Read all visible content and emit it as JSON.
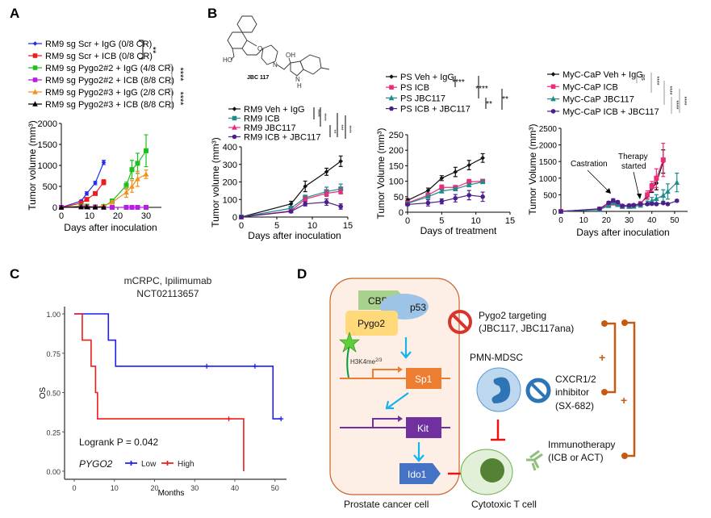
{
  "panel_labels": {
    "a": "A",
    "b": "B",
    "c": "C",
    "d": "D"
  },
  "structure": {
    "name": "JBC 117",
    "atom_labels": [
      "O",
      "HO",
      "N",
      "OH",
      "N",
      "H"
    ]
  },
  "chart_data": [
    {
      "id": "A",
      "type": "line",
      "xlabel": "Days after inoculation",
      "ylabel": "Tumor volume (mm³)",
      "xlim": [
        0,
        35
      ],
      "ylim": [
        0,
        2000
      ],
      "xticks": [
        0,
        10,
        20,
        30
      ],
      "yticks": [
        0,
        500,
        1000,
        1500,
        2000
      ],
      "legend_position": "top",
      "significance": [
        "**",
        "****",
        "****"
      ],
      "series": [
        {
          "name": "RM9 sg Scr + IgG (0/8 CR)",
          "color": "#1f2df0",
          "marker": "diamond",
          "x": [
            0,
            7,
            9,
            12,
            15
          ],
          "y": [
            0,
            150,
            330,
            580,
            1070
          ],
          "err": [
            0,
            20,
            40,
            40,
            50
          ]
        },
        {
          "name": "RM9 sg Scr + ICB (0/8 CR)",
          "color": "#ee1c1c",
          "marker": "square",
          "x": [
            0,
            7,
            9,
            12,
            15
          ],
          "y": [
            0,
            100,
            190,
            330,
            600
          ],
          "err": [
            0,
            15,
            20,
            20,
            60
          ]
        },
        {
          "name": "RM9 sg Pygo2#2 + IgG (4/8 CR)",
          "color": "#1fbf1f",
          "marker": "square",
          "x": [
            0,
            7,
            9,
            12,
            15,
            18,
            23,
            25,
            27,
            30
          ],
          "y": [
            0,
            30,
            30,
            10,
            20,
            150,
            520,
            900,
            1050,
            1350
          ],
          "err": [
            0,
            10,
            10,
            5,
            10,
            50,
            80,
            220,
            240,
            380
          ]
        },
        {
          "name": "RM9 sg Pygo2#2 + ICB (8/8 CR)",
          "color": "#b41fe0",
          "marker": "square",
          "x": [
            0,
            7,
            9,
            12,
            15,
            18,
            23,
            25,
            27,
            30
          ],
          "y": [
            0,
            10,
            10,
            5,
            0,
            0,
            0,
            0,
            0,
            0
          ],
          "err": [
            0,
            5,
            5,
            3,
            0,
            0,
            0,
            0,
            0,
            0
          ]
        },
        {
          "name": "RM9 sg Pygo2#3 + IgG (2/8 CR)",
          "color": "#f7901e",
          "marker": "triangle",
          "x": [
            0,
            7,
            9,
            12,
            15,
            18,
            23,
            25,
            27,
            30
          ],
          "y": [
            0,
            20,
            20,
            10,
            30,
            120,
            360,
            500,
            680,
            790
          ],
          "err": [
            0,
            10,
            10,
            5,
            20,
            40,
            120,
            140,
            180,
            100
          ]
        },
        {
          "name": "RM9 sg Pygo2#3 + ICB (8/8 CR)",
          "color": "#000000",
          "marker": "triangle",
          "x": [
            0,
            7,
            9,
            12,
            15
          ],
          "y": [
            0,
            10,
            10,
            5,
            5
          ],
          "err": [
            0,
            5,
            5,
            3,
            3
          ]
        }
      ]
    },
    {
      "id": "B1",
      "type": "line",
      "xlabel": "Days after inoculation",
      "ylabel": "Tumor volume (mm³)",
      "xlim": [
        0,
        15
      ],
      "ylim": [
        0,
        400
      ],
      "xticks": [
        0,
        5,
        10,
        15
      ],
      "yticks": [
        0,
        100,
        200,
        300,
        400
      ],
      "legend_position": "top",
      "significance": [
        "****",
        "****",
        "**",
        "***",
        "****"
      ],
      "series": [
        {
          "name": "RM9 Veh + IgG",
          "color": "#111111",
          "marker": "diamond",
          "x": [
            0,
            7,
            9,
            12,
            14
          ],
          "y": [
            0,
            75,
            175,
            258,
            318
          ],
          "err": [
            0,
            15,
            30,
            20,
            30
          ]
        },
        {
          "name": "RM9 ICB",
          "color": "#1f8c8c",
          "marker": "square",
          "x": [
            0,
            7,
            9,
            12,
            14
          ],
          "y": [
            0,
            50,
            110,
            145,
            160
          ],
          "err": [
            0,
            8,
            15,
            25,
            28
          ]
        },
        {
          "name": "RM9 JBC117",
          "color": "#ee2a7b",
          "marker": "triangle",
          "x": [
            0,
            7,
            9,
            12,
            14
          ],
          "y": [
            0,
            35,
            102,
            135,
            147
          ],
          "err": [
            0,
            6,
            12,
            18,
            15
          ]
        },
        {
          "name": "RM9 ICB + JBC117",
          "color": "#4b1f8c",
          "marker": "circle",
          "x": [
            0,
            7,
            9,
            12,
            14
          ],
          "y": [
            0,
            32,
            75,
            85,
            60
          ],
          "err": [
            0,
            5,
            12,
            18,
            15
          ]
        }
      ]
    },
    {
      "id": "B2",
      "type": "line",
      "xlabel": "Days of treatment",
      "ylabel": "Tumor Volume (mm³)",
      "xlim": [
        0,
        15
      ],
      "ylim": [
        0,
        250
      ],
      "xticks": [
        0,
        5,
        10,
        15
      ],
      "yticks": [
        0,
        50,
        100,
        150,
        200,
        250
      ],
      "legend_position": "top",
      "significance": [
        "****",
        "****",
        "**",
        "**"
      ],
      "series": [
        {
          "name": "PS Veh + IgG",
          "color": "#111111",
          "marker": "diamond",
          "x": [
            0,
            3,
            5,
            7,
            9,
            11
          ],
          "y": [
            38,
            70,
            110,
            130,
            152,
            175
          ],
          "err": [
            6,
            8,
            8,
            15,
            15,
            14
          ]
        },
        {
          "name": "PS ICB",
          "color": "#ee2a7b",
          "marker": "square",
          "x": [
            0,
            3,
            5,
            7,
            9,
            11
          ],
          "y": [
            30,
            55,
            80,
            80,
            98,
            100
          ],
          "err": [
            5,
            6,
            8,
            6,
            8,
            6
          ]
        },
        {
          "name": "PS JBC117",
          "color": "#1f8c8c",
          "marker": "triangle",
          "x": [
            0,
            3,
            5,
            7,
            9,
            11
          ],
          "y": [
            28,
            50,
            68,
            75,
            88,
            98
          ],
          "err": [
            4,
            5,
            5,
            5,
            6,
            5
          ]
        },
        {
          "name": "PS ICB + JBC117",
          "color": "#4b1f8c",
          "marker": "circle",
          "x": [
            0,
            3,
            5,
            7,
            9,
            11
          ],
          "y": [
            25,
            30,
            35,
            45,
            55,
            50
          ],
          "err": [
            4,
            10,
            8,
            12,
            15,
            15
          ]
        }
      ]
    },
    {
      "id": "B3",
      "type": "line",
      "xlabel": "Days after inoculation",
      "ylabel": "Tumor Volume (mm³)",
      "xlim": [
        0,
        55
      ],
      "ylim": [
        0,
        2500
      ],
      "xticks": [
        0,
        10,
        20,
        30,
        40,
        50
      ],
      "yticks": [
        0,
        500,
        1000,
        1500,
        2000,
        2500
      ],
      "legend_position": "top",
      "significance": [
        "ns",
        "****",
        "****",
        "****",
        "****"
      ],
      "annotations": {
        "castration": "Castration",
        "therapy_1": "Therapy",
        "therapy_2": "started"
      },
      "series": [
        {
          "name": "MyC-CaP Veh + IgG",
          "color": "#111111",
          "marker": "diamond",
          "x": [
            0,
            17,
            21,
            23,
            25,
            27,
            30,
            32,
            35,
            38,
            40,
            42,
            45
          ],
          "y": [
            0,
            70,
            200,
            250,
            230,
            170,
            170,
            180,
            240,
            450,
            700,
            850,
            1500
          ],
          "err": [
            0,
            20,
            30,
            40,
            40,
            30,
            30,
            30,
            50,
            80,
            130,
            200,
            350
          ]
        },
        {
          "name": "MyC-CaP ICB",
          "color": "#ee2a7b",
          "marker": "square",
          "x": [
            0,
            17,
            21,
            23,
            25,
            27,
            30,
            32,
            35,
            38,
            40,
            42,
            45
          ],
          "y": [
            0,
            70,
            200,
            250,
            220,
            150,
            150,
            160,
            220,
            500,
            750,
            1000,
            1550
          ],
          "err": [
            0,
            20,
            30,
            40,
            40,
            30,
            30,
            30,
            50,
            120,
            150,
            280,
            500
          ]
        },
        {
          "name": "MyC-CaP JBC117",
          "color": "#1f8c8c",
          "marker": "triangle",
          "x": [
            0,
            17,
            21,
            23,
            25,
            27,
            30,
            32,
            35,
            38,
            40,
            42,
            45,
            47,
            51
          ],
          "y": [
            0,
            50,
            170,
            260,
            200,
            150,
            150,
            150,
            180,
            250,
            320,
            380,
            480,
            600,
            870
          ],
          "err": [
            0,
            15,
            30,
            40,
            30,
            25,
            25,
            25,
            30,
            60,
            100,
            120,
            170,
            230,
            280
          ]
        },
        {
          "name": "MyC-CaP ICB + JBC117",
          "color": "#4b1f8c",
          "marker": "circle",
          "x": [
            0,
            17,
            21,
            23,
            25,
            27,
            30,
            32,
            35,
            38,
            40,
            42,
            45,
            47,
            51
          ],
          "y": [
            0,
            80,
            260,
            330,
            280,
            170,
            180,
            190,
            220,
            220,
            230,
            220,
            250,
            220,
            320
          ],
          "err": [
            0,
            20,
            40,
            50,
            40,
            30,
            30,
            30,
            30,
            30,
            30,
            30,
            30,
            30,
            30
          ]
        }
      ]
    },
    {
      "id": "C",
      "type": "km",
      "title": "mCRPC, Ipilimumab",
      "subtitle": "NCT02113657",
      "xlabel": "Months",
      "ylabel": "OS",
      "xlim": [
        0,
        52
      ],
      "ylim": [
        0,
        1
      ],
      "xticks": [
        0,
        10,
        20,
        30,
        40,
        50
      ],
      "yticks": [
        "0.00",
        "0.25",
        "0.50",
        "0.75",
        "1.00"
      ],
      "annotation": "Logrank P = 0.042",
      "legend_title": "PYGO2",
      "series": [
        {
          "name": "Low",
          "color": "#1f1ff0",
          "x": [
            0,
            8.5,
            10.3,
            49.5,
            51.5
          ],
          "y": [
            1,
            0.833,
            0.667,
            0.333,
            0.333
          ],
          "censor_x": [
            33,
            45,
            51.5
          ]
        },
        {
          "name": "High",
          "color": "#ee1c1c",
          "x": [
            0,
            2,
            4.2,
            5.3,
            5.8,
            42.2
          ],
          "y": [
            1,
            0.833,
            0.667,
            0.5,
            0.333,
            0
          ],
          "censor_x": [
            38.5
          ]
        }
      ]
    }
  ],
  "diagram": {
    "cbp": "CBP",
    "p53": "p53",
    "pygo2": "Pygo2",
    "h3k4": "H3K4me",
    "h3k4_sup": "2/3",
    "sp1": "Sp1",
    "kit": "Kit",
    "ido1": "Ido1",
    "targeting_1": "Pygo2 targeting",
    "targeting_2": "(JBC117, JBC117ana)",
    "mdsc": "PMN-MDSC",
    "cxcr_1": "CXCR1/2",
    "cxcr_2": "inhibitor",
    "cxcr_3": "(SX-682)",
    "immuno_1": "Immunotherapy",
    "immuno_2": "(ICB or ACT)",
    "plus": "+",
    "cancer_cell": "Prostate cancer cell",
    "t_cell": "Cytotoxic T cell",
    "colors": {
      "orange": "#c55a11",
      "red": "#ee1111",
      "blue_arrow": "#14b4f0"
    }
  }
}
